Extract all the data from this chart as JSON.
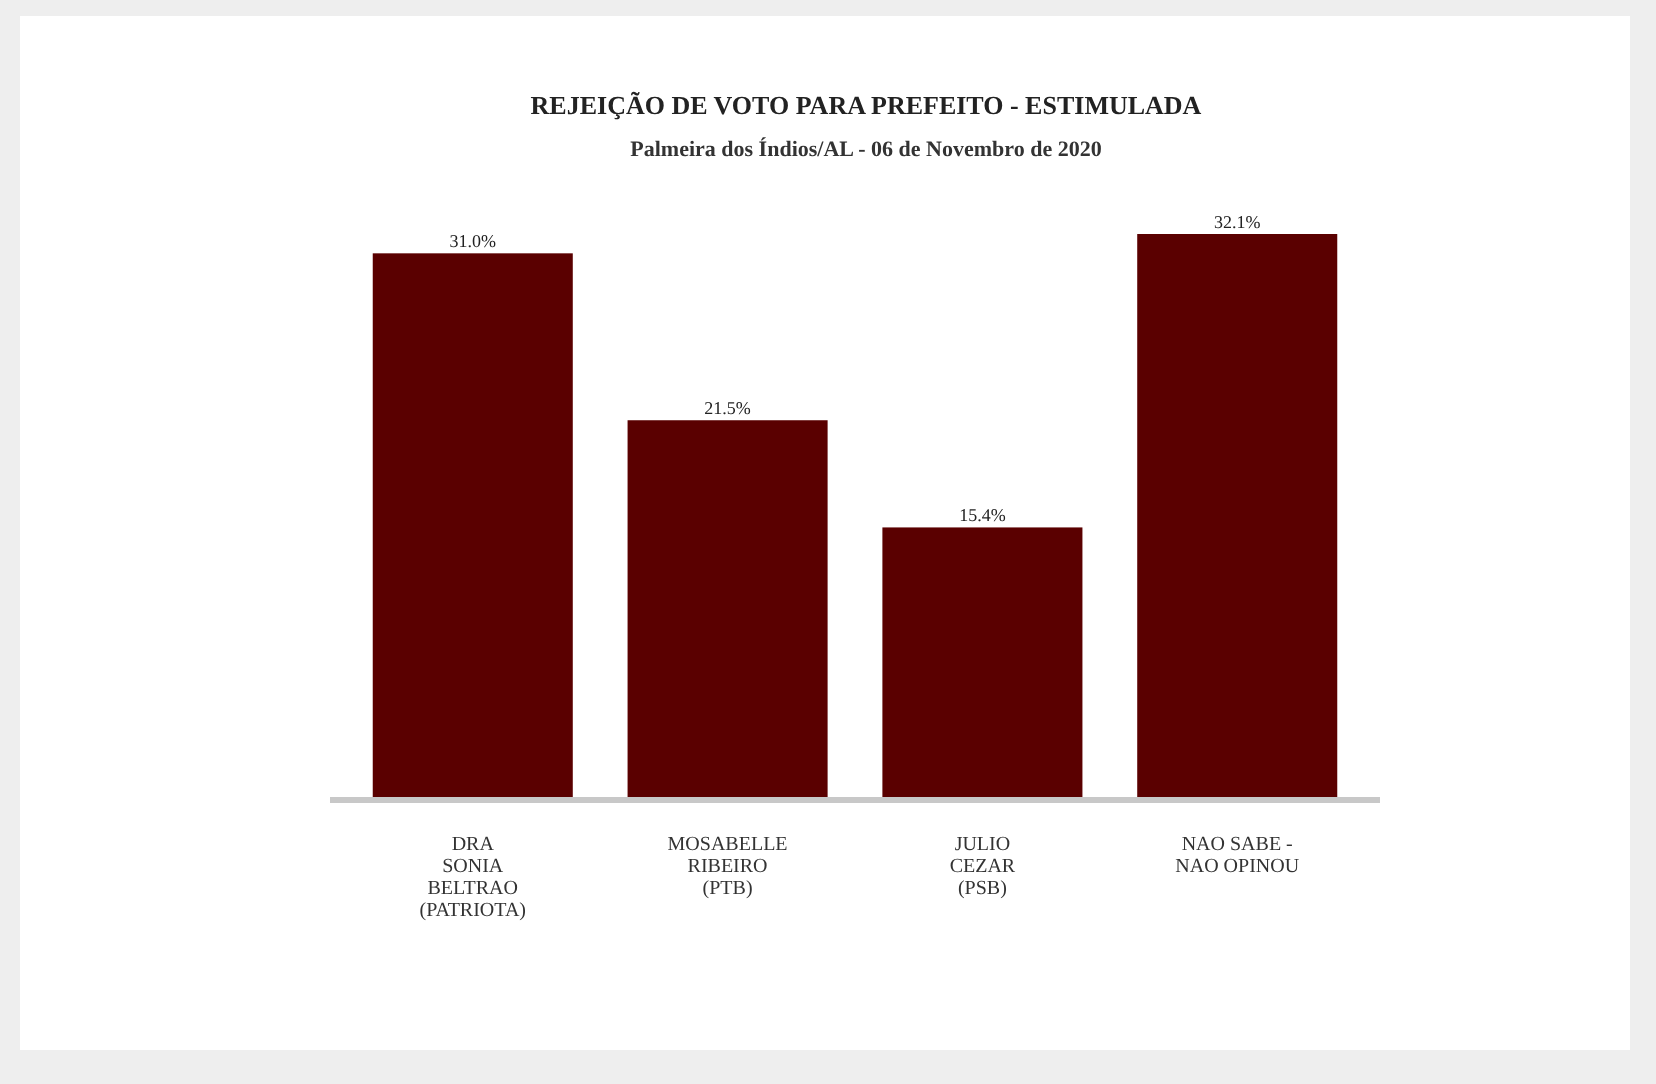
{
  "chart_data": {
    "type": "bar",
    "title": "REJEIÇÃO DE VOTO PARA PREFEITO - ESTIMULADA",
    "subtitle": "Palmeira dos Índios/AL - 06 de Novembro de 2020",
    "categories": [
      "DRA\nSONIA\nBELTRAO\n(PATRIOTA)",
      "MOSABELLE\nRIBEIRO\n(PTB)",
      "JULIO\nCEZAR\n(PSB)",
      "NAO SABE  -\nNAO OPINOU"
    ],
    "values": [
      31.0,
      21.5,
      15.4,
      32.1
    ],
    "value_labels": [
      "31.0%",
      "21.5%",
      "15.4%",
      "32.1%"
    ],
    "color": "#5a0000"
  }
}
